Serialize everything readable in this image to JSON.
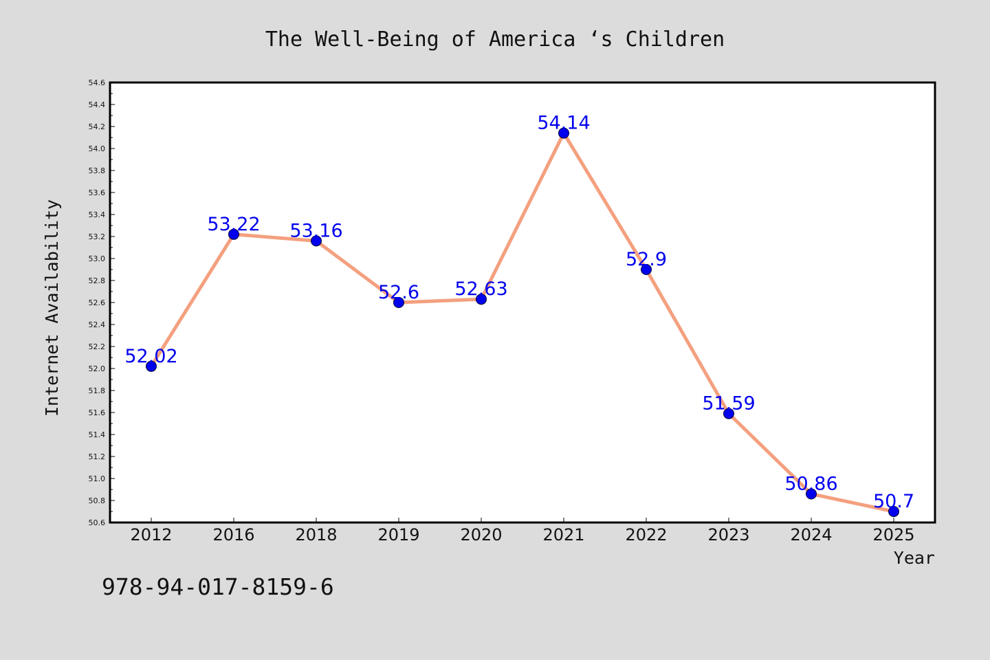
{
  "chart_data": {
    "type": "line",
    "title": "The Well-Being of America ‘s Children",
    "xlabel": "Year",
    "ylabel": "Internet Availability",
    "categories": [
      "2012",
      "2016",
      "2018",
      "2019",
      "2020",
      "2021",
      "2022",
      "2023",
      "2024",
      "2025"
    ],
    "values": [
      52.02,
      53.22,
      53.16,
      52.6,
      52.63,
      54.14,
      52.9,
      51.59,
      50.86,
      50.7
    ],
    "data_labels": [
      "52.02",
      "53.22",
      "53.16",
      "52.6",
      "52.63",
      "54.14",
      "52.9",
      "51.59",
      "50.86",
      "50.7"
    ],
    "ylim": [
      50.6,
      54.6
    ],
    "y_ticks": [
      "50.6",
      "50.8",
      "51.0",
      "51.2",
      "51.4",
      "51.6",
      "51.8",
      "52.0",
      "52.2",
      "52.4",
      "52.6",
      "52.8",
      "53.0",
      "53.2",
      "53.4",
      "53.6",
      "53.8",
      "54.0",
      "54.2",
      "54.4",
      "54.6"
    ],
    "grid": false,
    "legend": "none",
    "colors": {
      "line": "#f4a07f",
      "marker": "#0000ee",
      "data_label": "#0000ee",
      "plot_background": "#ffffff",
      "page_background": "#dcdcdc"
    }
  },
  "footer": {
    "code": "978-94-017-8159-6"
  }
}
